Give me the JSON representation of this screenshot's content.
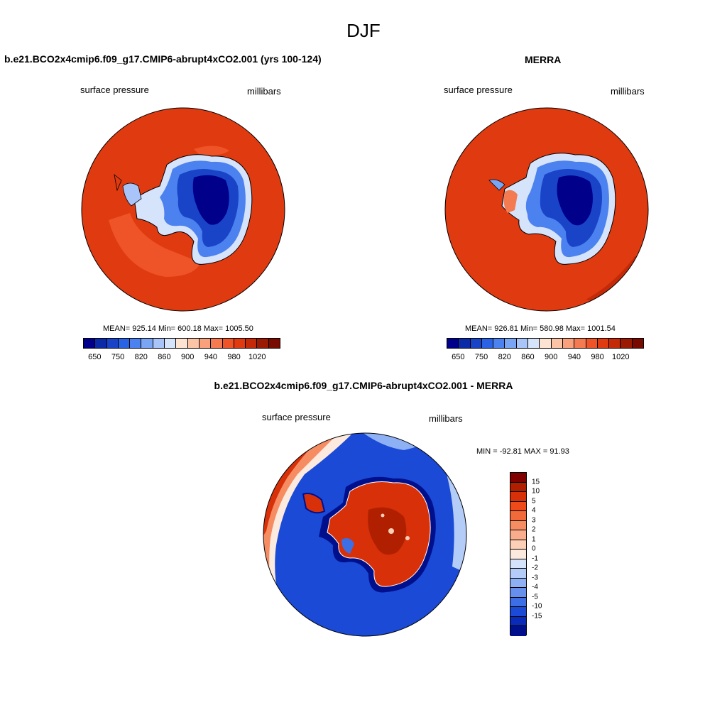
{
  "figure": {
    "season": "DJF"
  },
  "panel_model": {
    "title": "b.e21.BCO2x4cmip6.f09_g17.CMIP6-abrupt4xCO2.001 (yrs 100-124)",
    "variable": "surface pressure",
    "units": "millibars",
    "stats": "MEAN= 925.14  Min= 600.18  Max= 1005.50"
  },
  "panel_obs": {
    "title": "MERRA",
    "variable": "surface pressure",
    "units": "millibars",
    "stats": "MEAN= 926.81  Min= 580.98  Max= 1001.54"
  },
  "panel_diff": {
    "title": "b.e21.BCO2x4cmip6.f09_g17.CMIP6-abrupt4xCO2.001 - MERRA",
    "variable": "surface pressure",
    "units": "millibars",
    "stats": "MIN = -92.81 MAX =  91.93"
  },
  "colorbar_abs": {
    "tick_labels": [
      "650",
      "750",
      "820",
      "860",
      "900",
      "940",
      "980",
      "1020"
    ],
    "colors": [
      "#00008b",
      "#0a2aa8",
      "#1a44c8",
      "#2a62e6",
      "#4c82f0",
      "#7aa4f4",
      "#a8c4f8",
      "#d6e4fb",
      "#fde4d2",
      "#fcc4a6",
      "#f9a07c",
      "#f47a52",
      "#ee5428",
      "#e03a10",
      "#c42a08",
      "#9a1a04",
      "#780a00"
    ]
  },
  "colorbar_diff": {
    "tick_labels": [
      "15",
      "10",
      "5",
      "4",
      "3",
      "2",
      "1",
      "0",
      "-1",
      "-2",
      "-3",
      "-4",
      "-5",
      "-10",
      "-15"
    ],
    "colors": [
      "#800000",
      "#b02000",
      "#d83008",
      "#ee4a1a",
      "#f26a3a",
      "#f68c62",
      "#f9ad8c",
      "#fcd0b6",
      "#fdeadf",
      "#d6e4fb",
      "#b4ccf8",
      "#8eb0f4",
      "#6690ee",
      "#3c6ee6",
      "#1a4ad6",
      "#0a2ab8",
      "#00108c"
    ]
  }
}
